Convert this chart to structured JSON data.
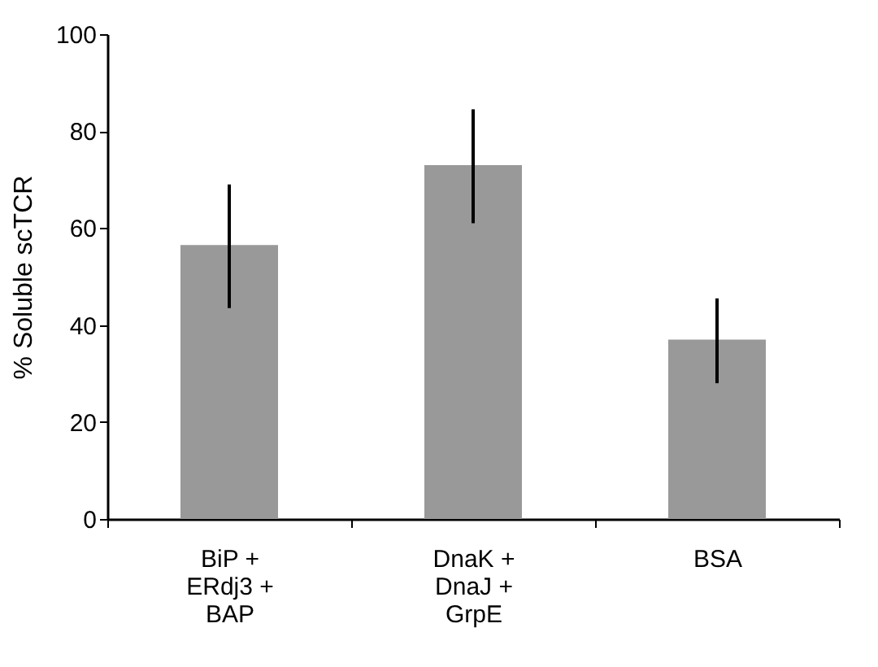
{
  "chart_data": {
    "type": "bar",
    "ylabel": "% Soluble scTCR",
    "categories": [
      "BiP + ERdj3 + BAP",
      "DnaK + DnaJ + GrpE",
      "BSA"
    ],
    "values": [
      56.5,
      73,
      37
    ],
    "errors": [
      [
        43.5,
        69
      ],
      [
        61,
        84.5
      ],
      [
        28,
        45.5
      ]
    ],
    "color": "#999999",
    "ylim": [
      0,
      100
    ],
    "yticks": [
      0,
      20,
      40,
      60,
      80,
      100
    ],
    "grid": false
  }
}
